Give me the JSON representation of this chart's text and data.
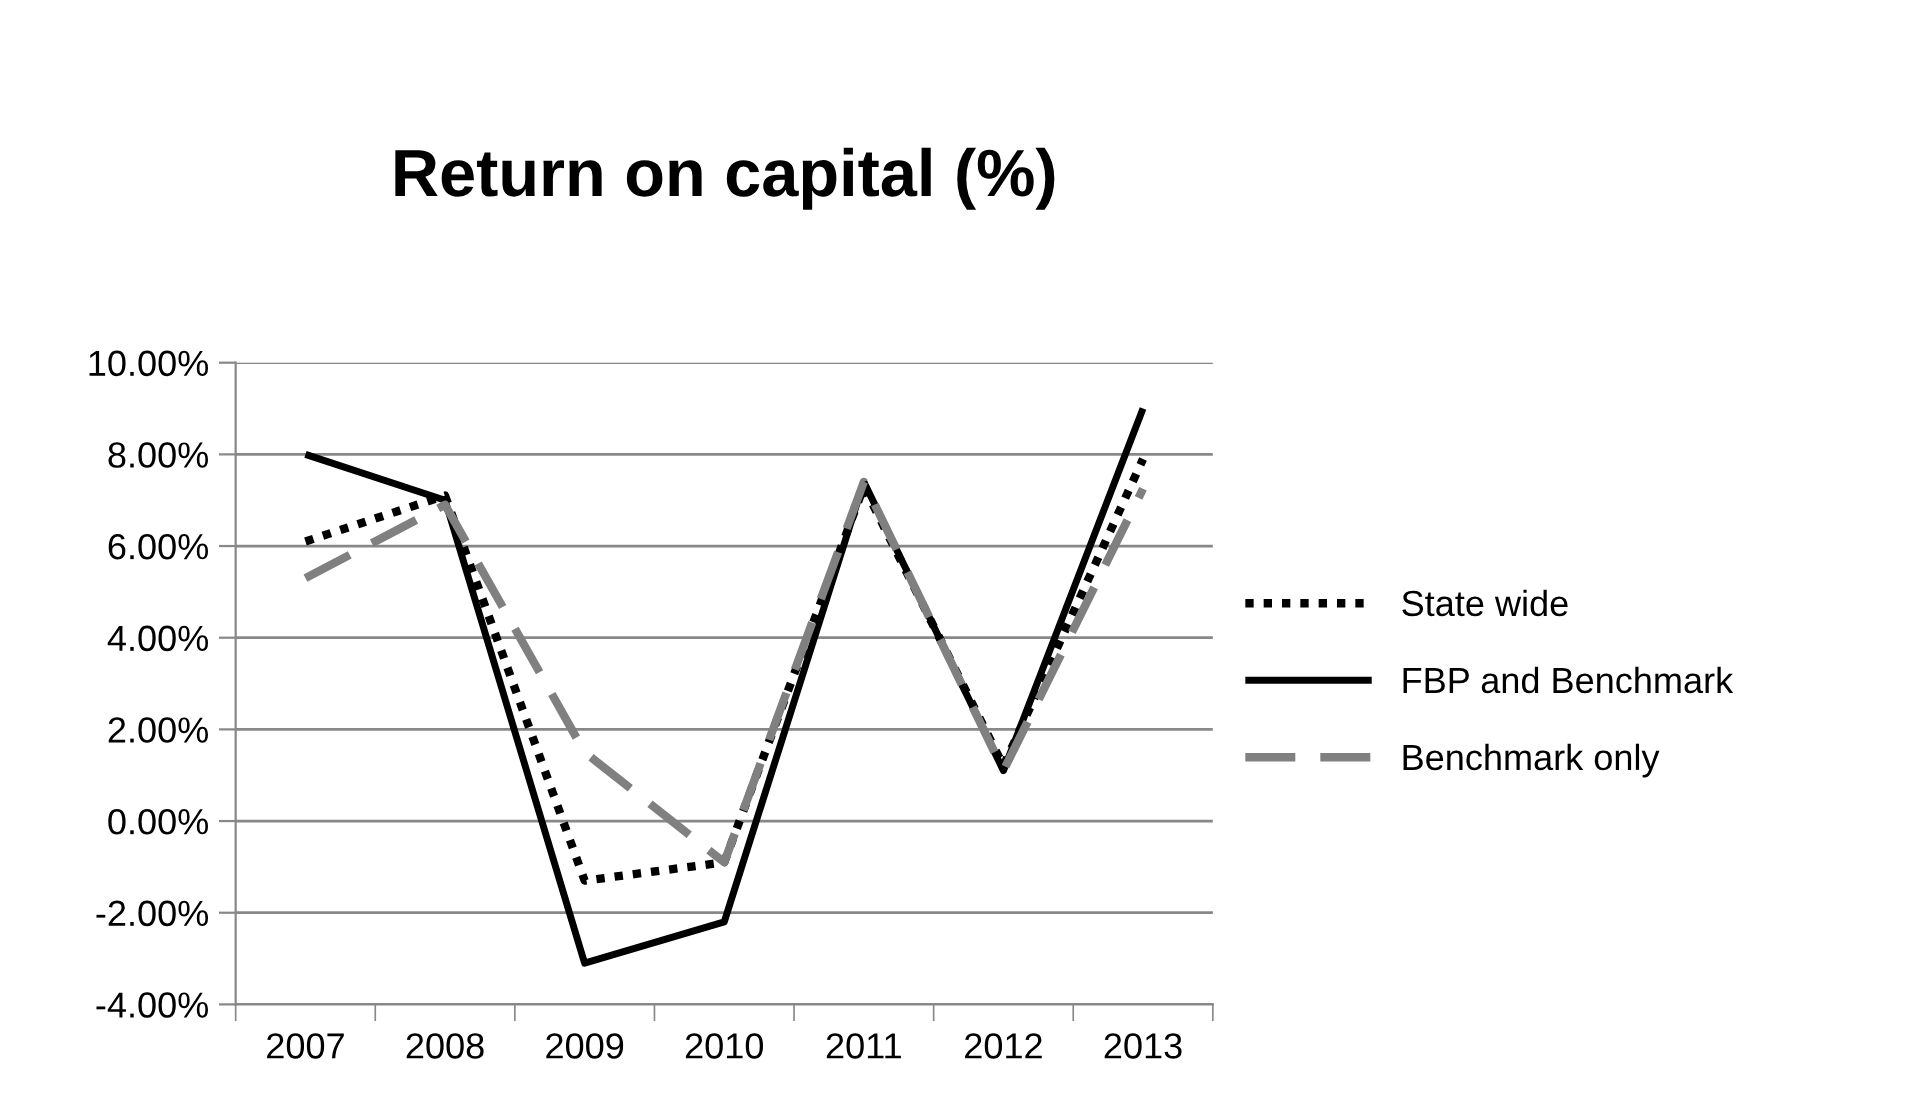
{
  "chart_data": {
    "type": "line",
    "title": "Return on capital (%)",
    "categories": [
      "2007",
      "2008",
      "2009",
      "2010",
      "2011",
      "2012",
      "2013"
    ],
    "series": [
      {
        "name": "State wide",
        "color": "#000000",
        "line_style": "dotted",
        "values": [
          6.1,
          7.1,
          -1.3,
          -0.9,
          7.3,
          1.2,
          7.9
        ]
      },
      {
        "name": "FBP and Benchmark",
        "color": "#000000",
        "line_style": "solid",
        "values": [
          8.0,
          7.0,
          -3.1,
          -2.2,
          7.4,
          1.1,
          9.0
        ]
      },
      {
        "name": "Benchmark only",
        "color": "#808080",
        "line_style": "dashed",
        "values": [
          5.3,
          6.9,
          1.5,
          -0.9,
          7.4,
          1.1,
          7.25
        ]
      }
    ],
    "ylim": [
      -4,
      10
    ],
    "yticks": [
      {
        "value": -4,
        "label": "-4.00%"
      },
      {
        "value": -2,
        "label": "-2.00%"
      },
      {
        "value": 0,
        "label": "0.00%"
      },
      {
        "value": 2,
        "label": "2.00%"
      },
      {
        "value": 4,
        "label": "4.00%"
      },
      {
        "value": 6,
        "label": "6.00%"
      },
      {
        "value": 8,
        "label": "8.00%"
      },
      {
        "value": 10,
        "label": "10.00%"
      }
    ],
    "grid": "y",
    "legend": "right",
    "marker": "none"
  }
}
